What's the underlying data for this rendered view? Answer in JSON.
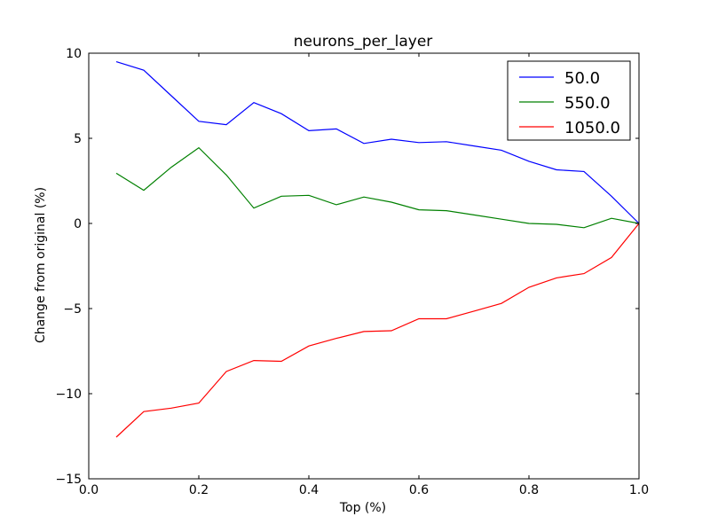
{
  "chart_data": {
    "type": "line",
    "title": "neurons_per_layer",
    "xlabel": "Top (%)",
    "ylabel": "Change from original (%)",
    "xlim": [
      0.0,
      1.0
    ],
    "ylim": [
      -15,
      10
    ],
    "xticks": [
      "0.0",
      "0.2",
      "0.4",
      "0.6",
      "0.8",
      "1.0"
    ],
    "yticks": [
      "10",
      "5",
      "0",
      "−5",
      "−10",
      "−15"
    ],
    "grid": false,
    "legend_position": "top-right",
    "x": [
      0.05,
      0.1,
      0.15,
      0.2,
      0.25,
      0.3,
      0.35,
      0.4,
      0.45,
      0.5,
      0.55,
      0.6,
      0.65,
      0.7,
      0.75,
      0.8,
      0.85,
      0.9,
      0.95,
      1.0
    ],
    "series": [
      {
        "name": "50.0",
        "color": "#0000ff",
        "values": [
          9.5,
          9.0,
          7.5,
          6.0,
          5.8,
          7.1,
          6.45,
          5.45,
          5.55,
          4.7,
          4.95,
          4.75,
          4.8,
          4.55,
          4.3,
          3.65,
          3.15,
          3.05,
          1.6,
          0.0
        ]
      },
      {
        "name": "550.0",
        "color": "#008000",
        "values": [
          2.95,
          1.95,
          3.3,
          4.45,
          2.85,
          0.9,
          1.6,
          1.65,
          1.1,
          1.55,
          1.25,
          0.8,
          0.75,
          0.5,
          0.25,
          0.0,
          -0.05,
          -0.25,
          0.3,
          0.0
        ]
      },
      {
        "name": "1050.0",
        "color": "#ff0000",
        "values": [
          -12.55,
          -11.05,
          -10.85,
          -10.55,
          -8.7,
          -8.05,
          -8.1,
          -7.2,
          -6.75,
          -6.35,
          -6.3,
          -5.6,
          -5.6,
          -5.15,
          -4.7,
          -3.75,
          -3.2,
          -2.95,
          -2.0,
          0.0
        ]
      }
    ]
  }
}
